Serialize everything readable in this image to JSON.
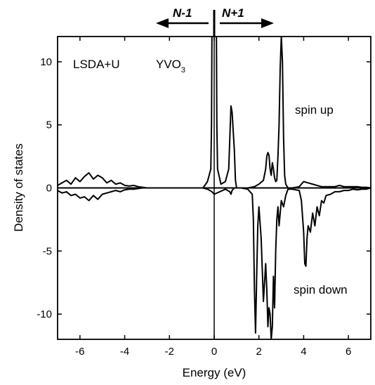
{
  "chart_data": {
    "type": "line",
    "title": "",
    "xlabel": "Energy (eV)",
    "ylabel": "Density of states",
    "xlim": [
      -7,
      7
    ],
    "ylim": [
      -12,
      12
    ],
    "xticks": [
      -6,
      -4,
      -2,
      0,
      2,
      4,
      6
    ],
    "yticks": [
      -10,
      -5,
      0,
      5,
      10
    ],
    "xtick_labels": [
      "-6",
      "-4",
      "-2",
      "0",
      "2",
      "4",
      "6"
    ],
    "ytick_labels": [
      "-10",
      "-5",
      "0",
      "5",
      "10"
    ],
    "grid": false,
    "legend": "none",
    "fermi_level": 0,
    "annotations": {
      "method": "LSDA+U",
      "compound": "YVO",
      "compound_subscript": "3",
      "spin_up": "spin up",
      "spin_down": "spin down",
      "left_arrow": "N-1",
      "right_arrow": "N+1"
    },
    "series": [
      {
        "x": [
          -7.0,
          -6.8,
          -6.6,
          -6.4,
          -6.2,
          -6.0,
          -5.8,
          -5.6,
          -5.4,
          -5.2,
          -5.0,
          -4.8,
          -4.6,
          -4.4,
          -4.2,
          -4.0,
          -3.8,
          -3.6,
          -3.4,
          -3.2,
          -3.0,
          -2.0,
          -1.0,
          -0.5,
          -0.3,
          -0.15,
          -0.12,
          -0.1,
          0.0,
          0.1,
          0.12,
          0.15,
          0.3,
          0.5,
          0.65,
          0.7,
          0.75,
          0.8,
          0.9,
          0.95,
          1.0,
          1.2,
          1.5,
          1.8,
          2.0,
          2.2,
          2.3,
          2.35,
          2.4,
          2.45,
          2.5,
          2.55,
          2.6,
          2.65,
          2.7,
          2.75,
          2.8,
          2.85,
          2.9,
          2.95,
          3.0,
          3.05,
          3.1,
          3.15,
          3.2,
          3.3,
          3.5,
          3.8,
          4.0,
          4.2,
          4.4,
          4.6,
          4.8,
          5.0,
          5.2,
          5.4,
          5.6,
          5.8,
          6.0,
          6.2,
          6.4,
          6.6,
          6.8,
          7.0
        ],
        "values": [
          0.2,
          0.4,
          0.6,
          0.3,
          0.8,
          0.5,
          0.9,
          1.2,
          0.7,
          1.0,
          0.8,
          0.4,
          0.6,
          0.3,
          0.4,
          0.2,
          0.15,
          0.2,
          0.1,
          0.05,
          0.0,
          0.0,
          0.0,
          0.0,
          0.5,
          1.5,
          5.0,
          12.0,
          12.0,
          12.0,
          5.0,
          1.5,
          0.3,
          0.5,
          1.5,
          4.0,
          6.5,
          6.0,
          3.0,
          0.6,
          0.0,
          0.0,
          0.0,
          0.1,
          0.3,
          0.6,
          1.5,
          2.5,
          2.8,
          2.6,
          1.5,
          1.0,
          2.0,
          1.5,
          0.8,
          0.5,
          0.6,
          2.5,
          5.0,
          9.5,
          12.0,
          10.0,
          4.0,
          1.0,
          0.3,
          0.0,
          0.0,
          0.1,
          0.5,
          0.4,
          0.3,
          0.2,
          0.1,
          0.1,
          0.1,
          0.1,
          0.2,
          0.1,
          0.1,
          0.1,
          0.1,
          0.05,
          0.05,
          0.0
        ]
      },
      {
        "x": [
          -7.0,
          -6.8,
          -6.6,
          -6.4,
          -6.2,
          -6.0,
          -5.8,
          -5.6,
          -5.4,
          -5.2,
          -5.0,
          -4.8,
          -4.6,
          -4.4,
          -4.2,
          -4.0,
          -3.8,
          -3.6,
          -3.4,
          -3.2,
          -3.0,
          -2.0,
          -1.0,
          -0.5,
          -0.3,
          -0.1,
          0.0,
          0.5,
          0.7,
          0.75,
          0.8,
          0.9,
          1.2,
          1.5,
          1.7,
          1.75,
          1.8,
          1.85,
          1.9,
          1.95,
          2.0,
          2.1,
          2.2,
          2.3,
          2.35,
          2.4,
          2.45,
          2.5,
          2.55,
          2.6,
          2.65,
          2.7,
          2.75,
          2.8,
          2.85,
          2.9,
          2.95,
          3.0,
          3.1,
          3.2,
          3.3,
          3.5,
          3.8,
          3.9,
          4.0,
          4.05,
          4.1,
          4.15,
          4.2,
          4.3,
          4.4,
          4.5,
          4.6,
          4.7,
          4.8,
          4.9,
          5.0,
          5.2,
          5.4,
          5.6,
          5.8,
          6.0,
          6.2,
          6.4,
          6.6,
          6.8,
          7.0
        ],
        "values": [
          -0.2,
          -0.4,
          -0.3,
          -0.6,
          -0.5,
          -0.8,
          -0.7,
          -1.0,
          -0.6,
          -0.9,
          -0.5,
          -0.4,
          -0.3,
          -0.2,
          -0.3,
          -0.15,
          -0.1,
          -0.1,
          -0.05,
          0.0,
          0.0,
          0.0,
          0.0,
          0.0,
          -0.1,
          -0.3,
          -0.5,
          -0.1,
          -0.3,
          -0.5,
          -0.2,
          0.0,
          0.0,
          -0.1,
          -0.5,
          -2.5,
          -8.0,
          -11.5,
          -7.0,
          -3.0,
          -1.5,
          -4.0,
          -9.0,
          -6.0,
          -8.0,
          -11.0,
          -9.5,
          -10.0,
          -12.0,
          -11.0,
          -7.0,
          -9.5,
          -5.0,
          -2.5,
          -1.5,
          -3.0,
          -2.0,
          -1.0,
          -1.5,
          -0.6,
          -0.1,
          -0.1,
          -0.2,
          -1.0,
          -3.5,
          -6.0,
          -6.2,
          -4.0,
          -3.0,
          -3.5,
          -2.0,
          -3.0,
          -1.5,
          -2.2,
          -1.0,
          -1.2,
          -0.6,
          -0.5,
          -0.3,
          -0.3,
          -0.2,
          -0.2,
          -0.1,
          -0.15,
          -0.1,
          -0.1,
          0.0
        ]
      }
    ]
  }
}
